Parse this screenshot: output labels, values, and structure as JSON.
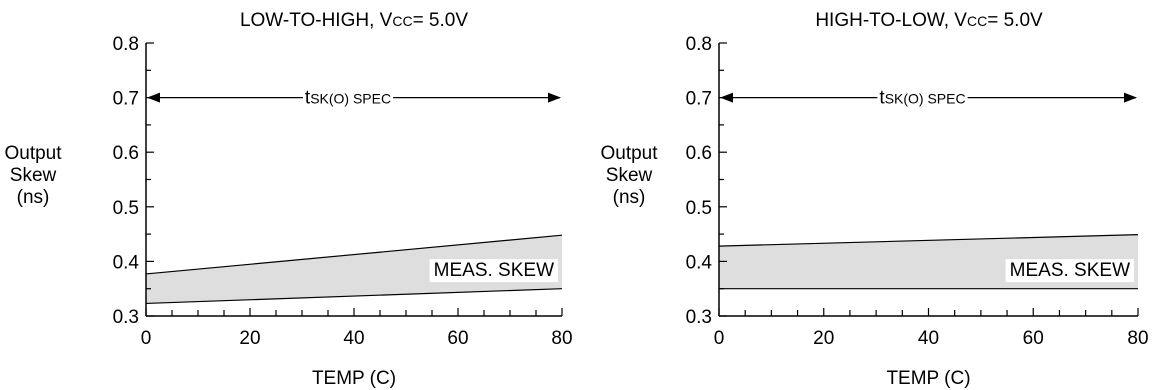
{
  "chart_data": [
    {
      "type": "area",
      "title_main": "LOW-TO-HIGH, V",
      "title_sub": "CC",
      "title_tail": "= 5.0V",
      "xlabel": "TEMP (C)",
      "ylabel_lines": [
        "Output",
        "Skew",
        "(ns)"
      ],
      "xlim": [
        0,
        80
      ],
      "ylim": [
        0.3,
        0.8
      ],
      "x_ticks": [
        0,
        20,
        40,
        60,
        80
      ],
      "x_tick_labels": [
        "0",
        "20",
        "40",
        "60",
        "80"
      ],
      "y_ticks": [
        0.3,
        0.4,
        0.5,
        0.6,
        0.7,
        0.8
      ],
      "y_tick_labels": [
        "0.3",
        "0.4",
        "0.5",
        "0.6",
        "0.7",
        "0.8"
      ],
      "x": [
        0,
        80
      ],
      "series": [
        {
          "role": "upper",
          "values": [
            0.377,
            0.448
          ]
        },
        {
          "role": "lower",
          "values": [
            0.323,
            0.35
          ]
        }
      ],
      "spec": {
        "value": 0.7,
        "x_range": [
          0,
          80
        ],
        "label_main": "t",
        "label_sub": "SK(O)",
        "label_tail": " SPEC"
      },
      "band_label": "MEAS. SKEW",
      "grid": false
    },
    {
      "type": "area",
      "title_main": "HIGH-TO-LOW, V",
      "title_sub": "CC",
      "title_tail": "= 5.0V",
      "xlabel": "TEMP (C)",
      "ylabel_lines": [
        "Output",
        "Skew",
        "(ns)"
      ],
      "xlim": [
        0,
        80
      ],
      "ylim": [
        0.3,
        0.8
      ],
      "x_ticks": [
        0,
        20,
        40,
        60,
        80
      ],
      "x_tick_labels": [
        "0",
        "20",
        "40",
        "60",
        "80"
      ],
      "y_ticks": [
        0.3,
        0.4,
        0.5,
        0.6,
        0.7,
        0.8
      ],
      "y_tick_labels": [
        "0.3",
        "0.4",
        "0.5",
        "0.6",
        "0.7",
        "0.8"
      ],
      "x": [
        0,
        80
      ],
      "series": [
        {
          "role": "upper",
          "values": [
            0.428,
            0.449
          ]
        },
        {
          "role": "lower",
          "values": [
            0.35,
            0.35
          ]
        }
      ],
      "spec": {
        "value": 0.7,
        "x_range": [
          0,
          80
        ],
        "label_main": "t",
        "label_sub": "SK(O)",
        "label_tail": " SPEC"
      },
      "band_label": "MEAS. SKEW",
      "grid": false
    }
  ]
}
